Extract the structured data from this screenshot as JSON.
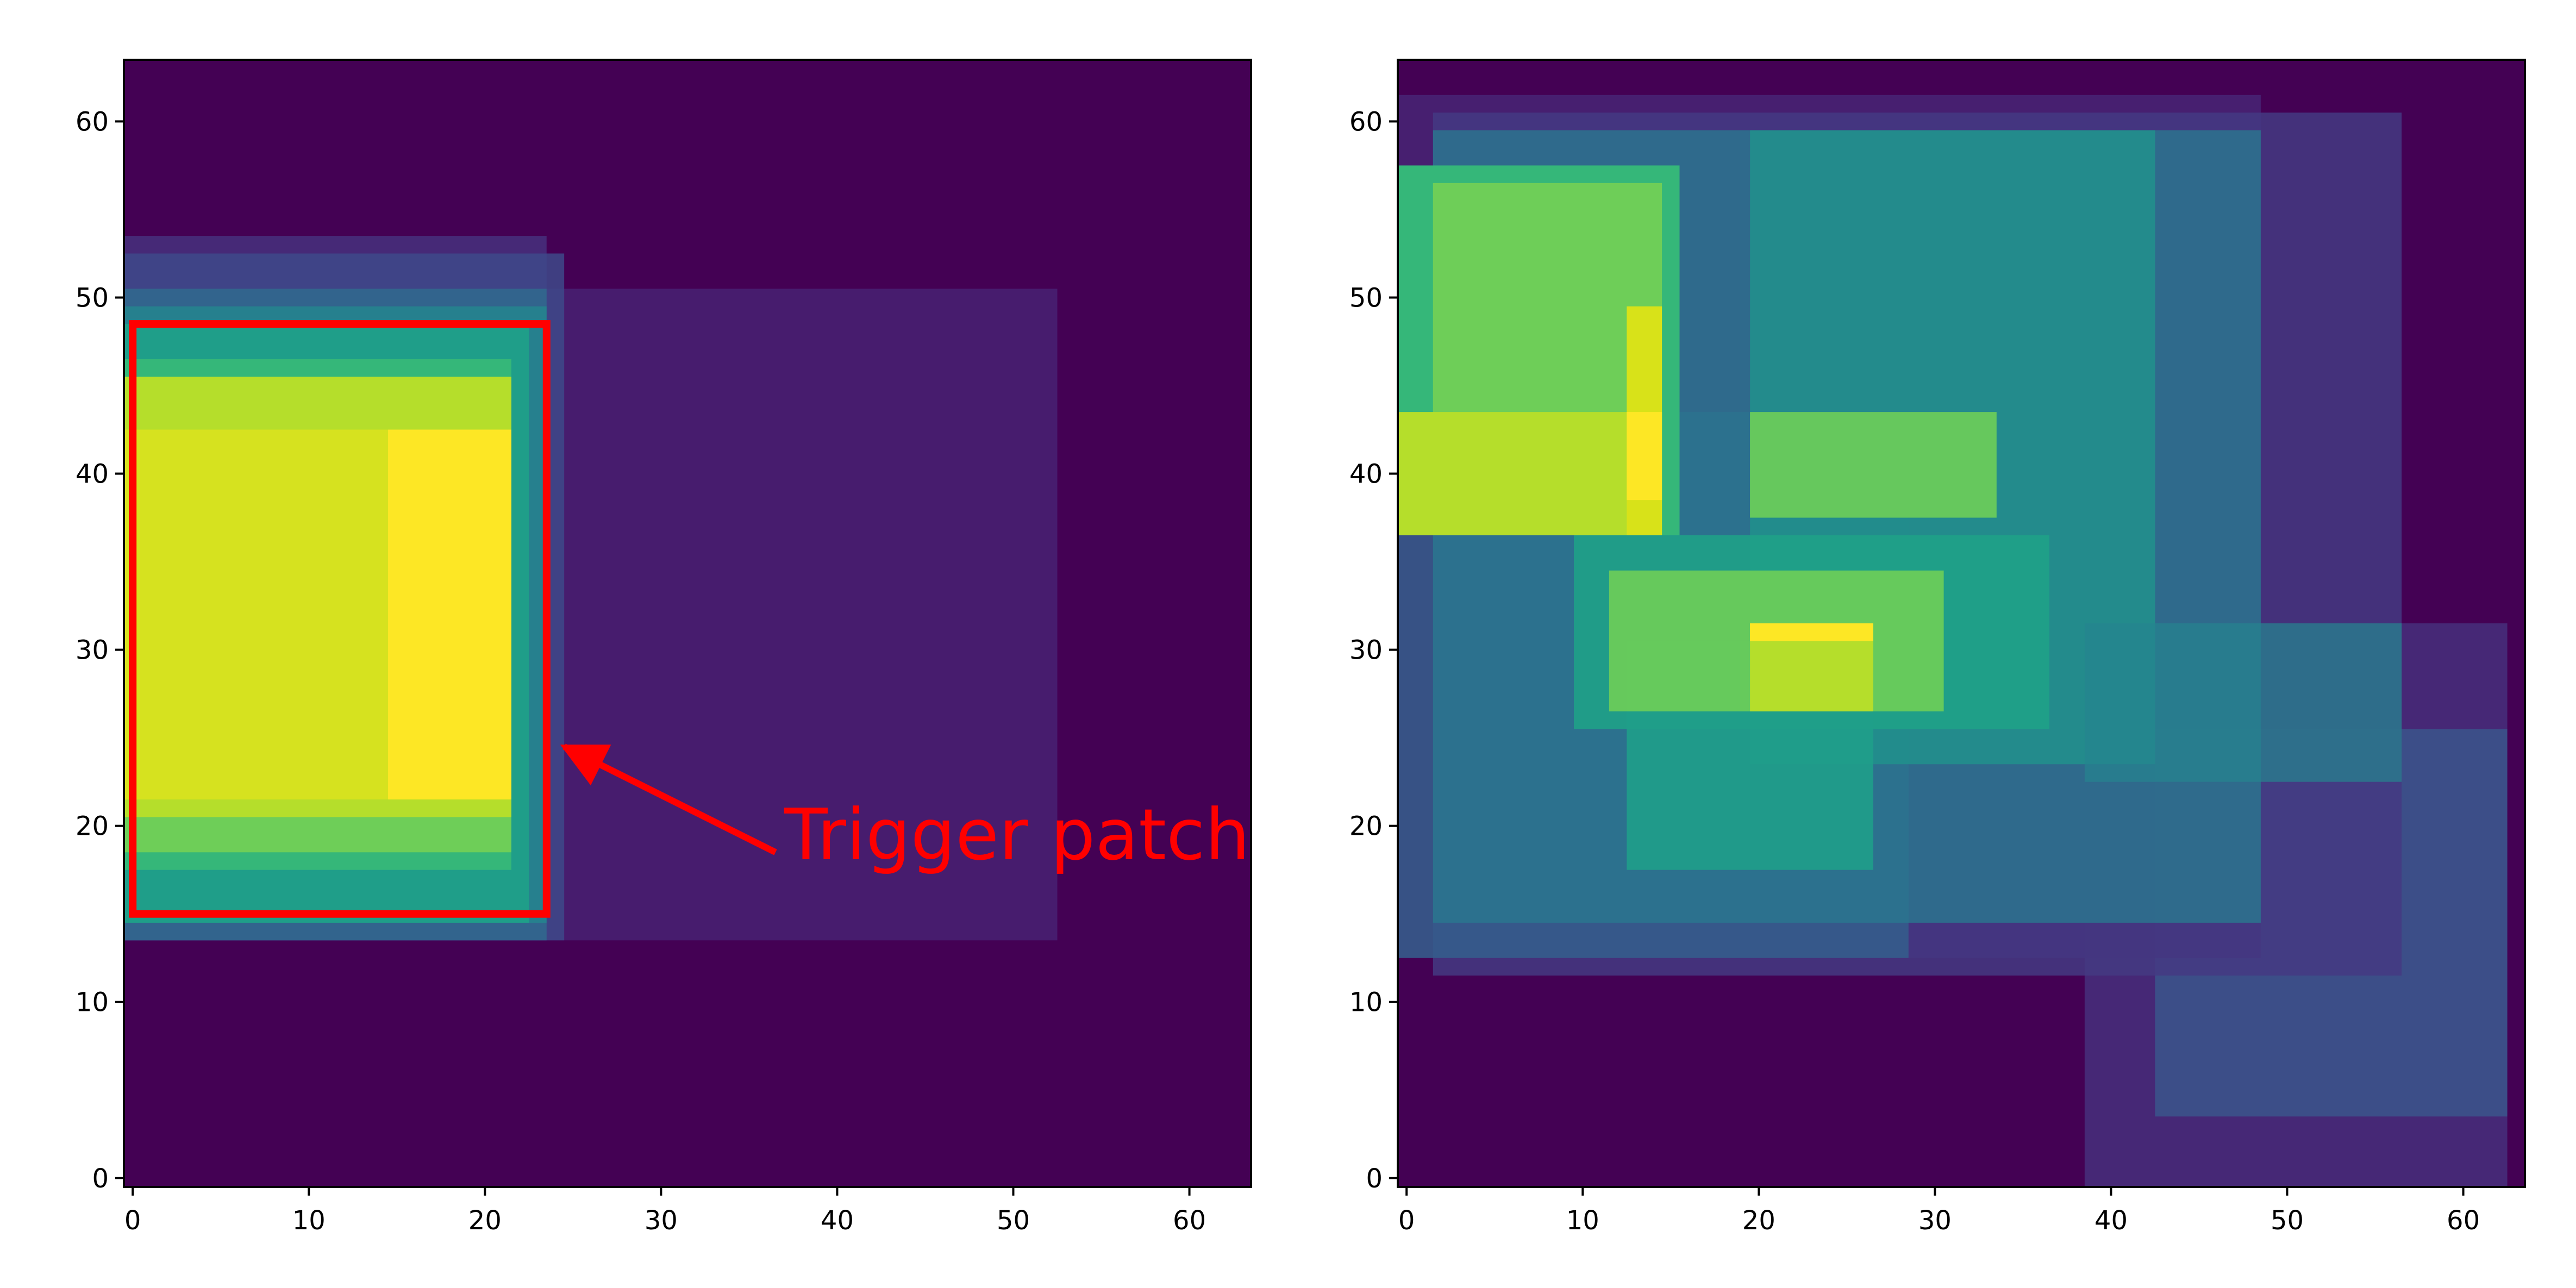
{
  "chart_data": [
    {
      "type": "heatmap",
      "title": "",
      "xlabel": "",
      "ylabel": "",
      "grid": false,
      "xlim": [
        -0.5,
        63.5
      ],
      "ylim": [
        63.5,
        -0.5
      ],
      "xticks": [
        0,
        10,
        20,
        30,
        40,
        50,
        60
      ],
      "yticks": [
        0,
        10,
        20,
        30,
        40,
        50,
        60
      ],
      "xtick_labels": [
        "0",
        "10",
        "20",
        "30",
        "40",
        "50",
        "60"
      ],
      "ytick_labels": [
        "0",
        "10",
        "20",
        "30",
        "40",
        "50",
        "60"
      ],
      "colormap": "viridis",
      "background_color": "#440154",
      "cells": [
        {
          "x": [
            0,
            24
          ],
          "y": [
            14,
            54
          ],
          "color": "#472d7b",
          "opacity": 0.9
        },
        {
          "x": [
            0,
            53
          ],
          "y": [
            14,
            51
          ],
          "color": "#482173",
          "opacity": 0.85
        },
        {
          "x": [
            0,
            25
          ],
          "y": [
            14,
            53
          ],
          "color": "#3e4989",
          "opacity": 0.85
        },
        {
          "x": [
            0,
            24
          ],
          "y": [
            14,
            51
          ],
          "color": "#31688e",
          "opacity": 0.9
        },
        {
          "x": [
            0,
            24
          ],
          "y": [
            15,
            50
          ],
          "color": "#26828e",
          "opacity": 0.95
        },
        {
          "x": [
            0,
            23
          ],
          "y": [
            15,
            49
          ],
          "color": "#1f9e89",
          "opacity": 1
        },
        {
          "x": [
            0,
            22
          ],
          "y": [
            18,
            47
          ],
          "color": "#35b779",
          "opacity": 1
        },
        {
          "x": [
            0,
            22
          ],
          "y": [
            19,
            46
          ],
          "color": "#6ece58",
          "opacity": 1
        },
        {
          "x": [
            0,
            22
          ],
          "y": [
            21,
            46
          ],
          "color": "#b5de2b",
          "opacity": 1
        },
        {
          "x": [
            0,
            22
          ],
          "y": [
            22,
            43
          ],
          "color": "#d6e21f",
          "opacity": 1
        },
        {
          "x": [
            15,
            22
          ],
          "y": [
            22,
            43
          ],
          "color": "#fde725",
          "opacity": 1
        }
      ],
      "annotation": {
        "text": "Trigger patch",
        "color": "#ff0000",
        "box": {
          "x": [
            0,
            23.5
          ],
          "y": [
            15,
            48.5
          ]
        },
        "text_anchor": {
          "x": 37,
          "y": 19.5
        },
        "arrow_from": {
          "x": 36.5,
          "y": 18.5
        },
        "arrow_to": {
          "x": 24.5,
          "y": 24.5
        }
      }
    },
    {
      "type": "heatmap",
      "title": "",
      "xlabel": "",
      "ylabel": "",
      "grid": false,
      "xlim": [
        -0.5,
        63.5
      ],
      "ylim": [
        63.5,
        -0.5
      ],
      "xticks": [
        0,
        10,
        20,
        30,
        40,
        50,
        60
      ],
      "yticks": [
        0,
        10,
        20,
        30,
        40,
        50,
        60
      ],
      "xtick_labels": [
        "0",
        "10",
        "20",
        "30",
        "40",
        "50",
        "60"
      ],
      "ytick_labels": [
        "0",
        "10",
        "20",
        "30",
        "40",
        "50",
        "60"
      ],
      "colormap": "viridis",
      "background_color": "#440154",
      "cells": [
        {
          "x": [
            39,
            63
          ],
          "y": [
            0,
            32
          ],
          "color": "#472c7a",
          "opacity": 0.9
        },
        {
          "x": [
            43,
            63
          ],
          "y": [
            4,
            26
          ],
          "color": "#3b528b",
          "opacity": 0.9
        },
        {
          "x": [
            0,
            49
          ],
          "y": [
            13,
            62
          ],
          "color": "#482475",
          "opacity": 0.85
        },
        {
          "x": [
            2,
            57
          ],
          "y": [
            12,
            61
          ],
          "color": "#443983",
          "opacity": 0.85
        },
        {
          "x": [
            0,
            29
          ],
          "y": [
            13,
            44
          ],
          "color": "#31688e",
          "opacity": 0.7
        },
        {
          "x": [
            2,
            49
          ],
          "y": [
            15,
            60
          ],
          "color": "#2a788e",
          "opacity": 0.8
        },
        {
          "x": [
            20,
            43
          ],
          "y": [
            24,
            60
          ],
          "color": "#21918c",
          "opacity": 0.85
        },
        {
          "x": [
            10,
            37
          ],
          "y": [
            26,
            37
          ],
          "color": "#1fa187",
          "opacity": 0.9
        },
        {
          "x": [
            13,
            27
          ],
          "y": [
            18,
            31
          ],
          "color": "#1f9e89",
          "opacity": 0.9
        },
        {
          "x": [
            39,
            57
          ],
          "y": [
            23,
            32
          ],
          "color": "#25858e",
          "opacity": 0.7
        },
        {
          "x": [
            12,
            31
          ],
          "y": [
            27,
            35
          ],
          "color": "#6ece58",
          "opacity": 0.9
        },
        {
          "x": [
            20,
            27
          ],
          "y": [
            27,
            32
          ],
          "color": "#b5de2b",
          "opacity": 1
        },
        {
          "x": [
            0,
            16
          ],
          "y": [
            37,
            58
          ],
          "color": "#35b779",
          "opacity": 1
        },
        {
          "x": [
            2,
            15
          ],
          "y": [
            37,
            57
          ],
          "color": "#6ece58",
          "opacity": 1
        },
        {
          "x": [
            0,
            15
          ],
          "y": [
            37,
            44
          ],
          "color": "#b5de2b",
          "opacity": 1
        },
        {
          "x": [
            13,
            15
          ],
          "y": [
            37,
            50
          ],
          "color": "#d8e219",
          "opacity": 1
        },
        {
          "x": [
            13,
            15
          ],
          "y": [
            39,
            44
          ],
          "color": "#fde725",
          "opacity": 1
        },
        {
          "x": [
            20,
            34
          ],
          "y": [
            38,
            44
          ],
          "color": "#6ece58",
          "opacity": 0.9
        },
        {
          "x": [
            20,
            27
          ],
          "y": [
            31,
            32
          ],
          "color": "#fde725",
          "opacity": 1
        }
      ]
    }
  ]
}
